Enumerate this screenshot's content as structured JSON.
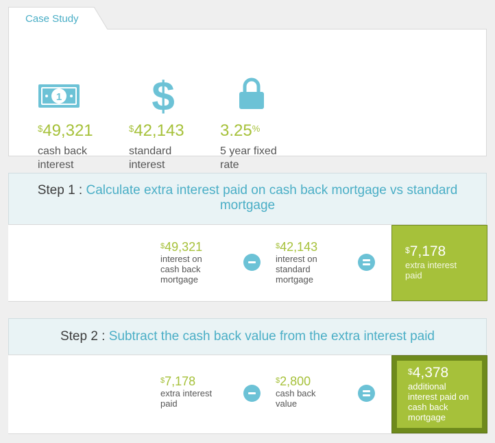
{
  "case_study": {
    "tab_label": "Case Study",
    "stats": [
      {
        "icon": "banknote-icon",
        "currency": "$",
        "value": "49,321",
        "suffix": "",
        "desc_line1": "cash back",
        "desc_line2": "interest"
      },
      {
        "icon": "dollar-sign-icon",
        "currency": "$",
        "value": "42,143",
        "suffix": "",
        "desc_line1": "standard",
        "desc_line2": "interest"
      },
      {
        "icon": "lock-icon",
        "currency": "",
        "value": "3.25",
        "suffix": "%",
        "desc_line1": "5 year fixed",
        "desc_line2": "rate"
      }
    ]
  },
  "steps": [
    {
      "number": "Step 1 :",
      "title": "Calculate extra interest paid on cash back mortgage vs standard mortgage",
      "left": {
        "currency": "$",
        "value": "49,321",
        "label_lines": [
          "interest on",
          "cash back",
          "mortgage"
        ]
      },
      "operator": "minus",
      "right": {
        "currency": "$",
        "value": "42,143",
        "label_lines": [
          "interest on",
          "standard",
          "mortgage"
        ]
      },
      "equals": "equals",
      "result": {
        "currency": "$",
        "value": "7,178",
        "label_lines": [
          "extra interest",
          "paid"
        ]
      }
    },
    {
      "number": "Step 2 :",
      "title": "Subtract the cash back value from the extra interest paid",
      "left": {
        "currency": "$",
        "value": "7,178",
        "label_lines": [
          "extra interest",
          "paid"
        ]
      },
      "operator": "minus",
      "right": {
        "currency": "$",
        "value": "2,800",
        "label_lines": [
          "cash back",
          "value"
        ]
      },
      "equals": "equals",
      "result": {
        "currency": "$",
        "value": "4,378",
        "label_lines": [
          "additional",
          "interest paid on",
          "cash back",
          "mortgage"
        ]
      }
    }
  ],
  "colors": {
    "accent_blue": "#4aaec6",
    "accent_green": "#a6c13a",
    "operator_blue": "#6cc2d6"
  }
}
